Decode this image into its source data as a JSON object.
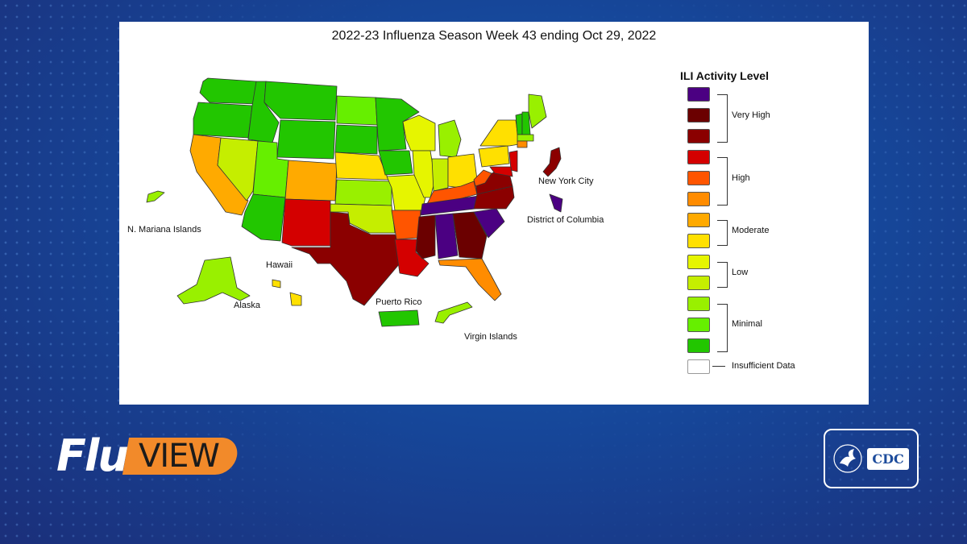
{
  "map": {
    "title": "2022-23 Influenza Season Week 43 ending Oct 29, 2022",
    "place_labels": {
      "new_york_city": "New York City",
      "district_of_columbia": "District of Columbia",
      "n_mariana_islands": "N. Mariana Islands",
      "hawaii": "Hawaii",
      "alaska": "Alaska",
      "puerto_rico": "Puerto Rico",
      "virgin_islands": "Virgin Islands"
    }
  },
  "legend": {
    "title": "ILI Activity Level",
    "levels": [
      {
        "color": "#4b0082",
        "group": "Very High"
      },
      {
        "color": "#6b0000",
        "group": "Very High"
      },
      {
        "color": "#8b0000",
        "group": "Very High"
      },
      {
        "color": "#d40000",
        "group": "High"
      },
      {
        "color": "#ff5500",
        "group": "High"
      },
      {
        "color": "#ff8c00",
        "group": "High"
      },
      {
        "color": "#ffaa00",
        "group": "Moderate"
      },
      {
        "color": "#ffe000",
        "group": "Moderate"
      },
      {
        "color": "#e6f500",
        "group": "Low"
      },
      {
        "color": "#c5ee00",
        "group": "Low"
      },
      {
        "color": "#99f000",
        "group": "Minimal"
      },
      {
        "color": "#66ef00",
        "group": "Minimal"
      },
      {
        "color": "#22c600",
        "group": "Minimal"
      },
      {
        "color": "#ffffff",
        "group": "Insufficient Data"
      }
    ],
    "group_labels": {
      "very_high": "Very High",
      "high": "High",
      "moderate": "Moderate",
      "low": "Low",
      "minimal": "Minimal",
      "insufficient": "Insufficient Data"
    }
  },
  "branding": {
    "flu_word": "Flu",
    "view_word": "VIEW",
    "agency_logo": "CDC"
  }
}
